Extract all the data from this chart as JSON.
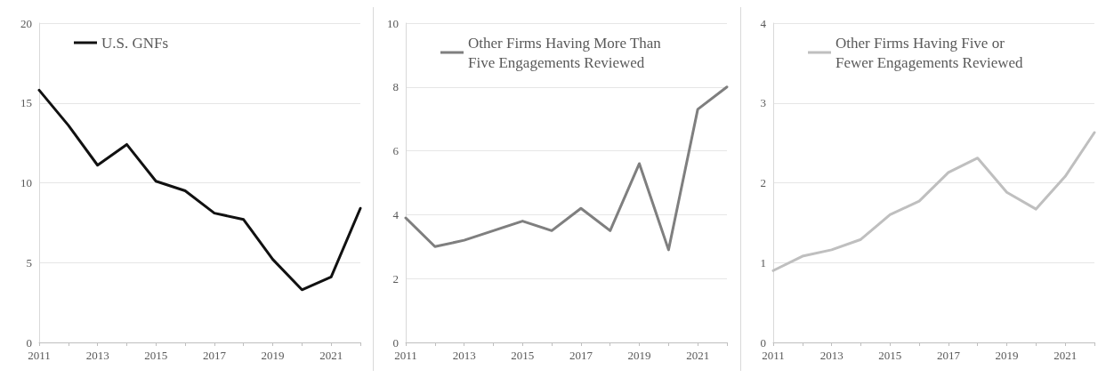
{
  "chart_data": [
    {
      "type": "line",
      "categories": [
        "2011",
        null,
        "2013",
        null,
        "2015",
        null,
        "2017",
        null,
        "2019",
        null,
        "2021",
        null
      ],
      "series": [
        {
          "name": "U.S. GNFs",
          "color": "#111111",
          "values": [
            15.8,
            13.6,
            11.1,
            12.4,
            10.1,
            9.5,
            8.1,
            7.7,
            5.2,
            3.3,
            4.1,
            8.4
          ]
        }
      ],
      "ylim": [
        0,
        20
      ],
      "yticks": [
        0,
        5,
        10,
        15,
        20
      ],
      "grid": "y",
      "legend": "top",
      "marker": "none",
      "line_style": "solid"
    },
    {
      "type": "line",
      "categories": [
        "2011",
        null,
        "2013",
        null,
        "2015",
        null,
        "2017",
        null,
        "2019",
        null,
        "2021",
        null
      ],
      "series": [
        {
          "name": "Other Firms Having More Than Five Engagements Reviewed",
          "color": "#7f7f7f",
          "values": [
            3.9,
            3.0,
            3.2,
            3.5,
            3.8,
            3.5,
            4.2,
            3.5,
            5.6,
            2.9,
            7.3,
            8.0
          ]
        }
      ],
      "ylim": [
        0,
        10
      ],
      "yticks": [
        0,
        2,
        4,
        6,
        8,
        10
      ],
      "grid": "y",
      "legend": "top",
      "marker": "none",
      "line_style": "solid"
    },
    {
      "type": "line",
      "categories": [
        "2011",
        null,
        "2013",
        null,
        "2015",
        null,
        "2017",
        null,
        "2019",
        null,
        "2021",
        null
      ],
      "series": [
        {
          "name": "Other Firms Having Five or Fewer Engagements Reviewed",
          "color": "#bfbfbf",
          "values": [
            0.9,
            1.08,
            1.16,
            1.29,
            1.6,
            1.77,
            2.13,
            2.31,
            1.88,
            1.67,
            2.08,
            2.63
          ]
        }
      ],
      "ylim": [
        0,
        4
      ],
      "yticks": [
        0,
        1,
        2,
        3,
        4
      ],
      "grid": "y",
      "legend": "top",
      "marker": "none",
      "line_style": "solid"
    }
  ]
}
